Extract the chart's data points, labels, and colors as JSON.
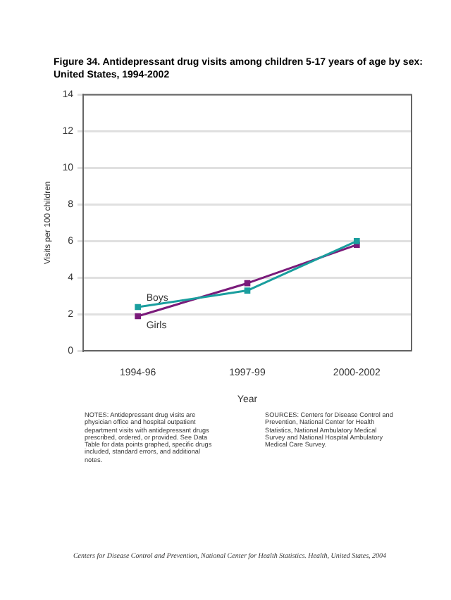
{
  "chart_data": {
    "type": "line",
    "title": "Figure 34. Antidepressant drug visits among children 5-17 years of age by sex: United States, 1994-2002",
    "xlabel": "Year",
    "ylabel": "Visits per 100 children",
    "categories": [
      "1994-96",
      "1997-99",
      "2000-2002"
    ],
    "series": [
      {
        "name": "Boys",
        "color": "#1a9e9e",
        "values": [
          2.4,
          3.3,
          6.0
        ]
      },
      {
        "name": "Girls",
        "color": "#7a1a7a",
        "values": [
          1.9,
          3.7,
          5.8
        ]
      }
    ],
    "ylim": [
      0,
      14
    ],
    "yticks": [
      0,
      2,
      4,
      6,
      8,
      10,
      12,
      14
    ],
    "grid": "y",
    "legend": false,
    "marker": "square",
    "line_style": "solid",
    "annotations": [
      "NOTES: Antidepressant drug visits are physician office and hospital outpatient department visits with antidepressant drugs prescribed, ordered, or provided. See Data Table for data points graphed, specific drugs included, standard errors, and additional notes.",
      "SOURCES: Centers for Disease Control and Prevention, National Center for Health Statistics, National Ambulatory Medical Survey and National Hospital Ambulatory Medical Care Survey.",
      "Centers for Disease Control and Prevention, National Center for Health Statistics. Health, United States, 2004"
    ]
  }
}
